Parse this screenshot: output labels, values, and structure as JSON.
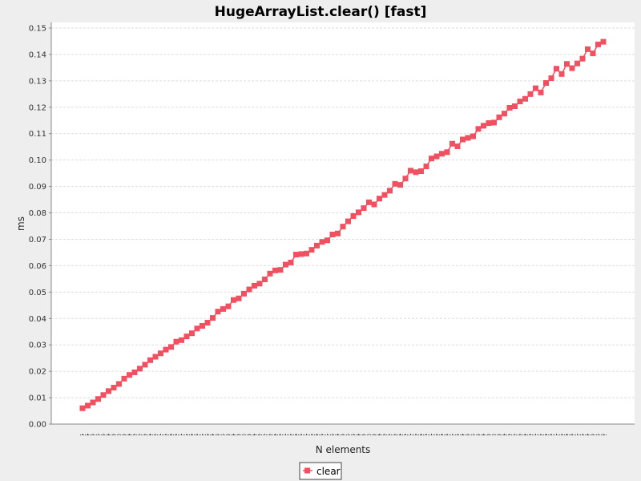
{
  "chart_data": {
    "type": "line",
    "title": "HugeArrayList.clear() [fast]",
    "xlabel": "N elements",
    "ylabel": "ms",
    "ylim": [
      0,
      0.15
    ],
    "yticks": [
      "0.00",
      "0.01",
      "0.02",
      "0.03",
      "0.04",
      "0.05",
      "0.06",
      "0.07",
      "0.08",
      "0.09",
      "0.10",
      "0.11",
      "0.12",
      "0.13",
      "0.14",
      "0.15"
    ],
    "grid": true,
    "legend_position": "bottom",
    "series": [
      {
        "name": "clear",
        "color": "#f05060",
        "marker": "square",
        "values": [
          0.006,
          0.007,
          0.0082,
          0.0095,
          0.011,
          0.0125,
          0.0138,
          0.0152,
          0.0172,
          0.0186,
          0.0196,
          0.021,
          0.0225,
          0.0242,
          0.0255,
          0.0268,
          0.0282,
          0.0292,
          0.0312,
          0.0318,
          0.0332,
          0.0344,
          0.0362,
          0.0372,
          0.0384,
          0.0402,
          0.0426,
          0.0436,
          0.0446,
          0.047,
          0.0476,
          0.0494,
          0.051,
          0.0524,
          0.0532,
          0.0548,
          0.057,
          0.0582,
          0.0584,
          0.0604,
          0.0612,
          0.0642,
          0.0644,
          0.0646,
          0.066,
          0.0676,
          0.069,
          0.0696,
          0.0718,
          0.0722,
          0.0748,
          0.0768,
          0.0788,
          0.0802,
          0.0818,
          0.084,
          0.0832,
          0.0854,
          0.0868,
          0.0884,
          0.091,
          0.0906,
          0.093,
          0.096,
          0.0954,
          0.0958,
          0.0976,
          0.1006,
          0.1014,
          0.1024,
          0.103,
          0.1062,
          0.1052,
          0.1078,
          0.1084,
          0.109,
          0.1118,
          0.113,
          0.114,
          0.1142,
          0.1162,
          0.1176,
          0.1198,
          0.1204,
          0.1222,
          0.1232,
          0.125,
          0.1272,
          0.1256,
          0.1292,
          0.131,
          0.1346,
          0.1326,
          0.1364,
          0.1348,
          0.1366,
          0.1384,
          0.142,
          0.1404,
          0.1438,
          0.1448
        ]
      }
    ]
  }
}
